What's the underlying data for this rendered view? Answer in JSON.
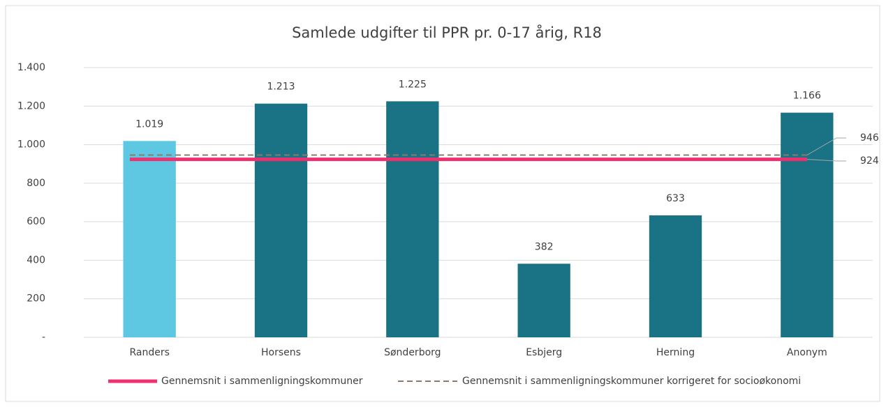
{
  "chart_data": {
    "type": "bar",
    "title": "Samlede udgifter til PPR pr. 0-17 årig, R18",
    "categories": [
      "Randers",
      "Horsens",
      "Sønderborg",
      "Esbjerg",
      "Herning",
      "Anonym"
    ],
    "values": [
      1019,
      1213,
      1225,
      382,
      633,
      1166
    ],
    "value_labels": [
      "1.019",
      "1.213",
      "1.225",
      "382",
      "633",
      "1.166"
    ],
    "colors": [
      "#5ec8e3",
      "#1a7385",
      "#1a7385",
      "#1a7385",
      "#1a7385",
      "#1a7385"
    ],
    "ylim": [
      0,
      1400
    ],
    "yticks": [
      {
        "value": 0,
        "label": "-"
      },
      200,
      400,
      600,
      800,
      {
        "value": 1000,
        "label": "1.000"
      },
      {
        "value": 1200,
        "label": "1.200"
      },
      {
        "value": 1400,
        "label": "1.400"
      }
    ],
    "grid": true,
    "reference_lines": [
      {
        "name": "Gennemsnit i sammenligningskommuner",
        "value": 924,
        "color": "#f0306e",
        "style": "solid"
      },
      {
        "name": "Gennemsnit i sammenligningskommuner korrigeret for socioøkonomi",
        "value": 946,
        "color": "#8a7a6e",
        "style": "dashed"
      }
    ],
    "legend": "bottom"
  }
}
